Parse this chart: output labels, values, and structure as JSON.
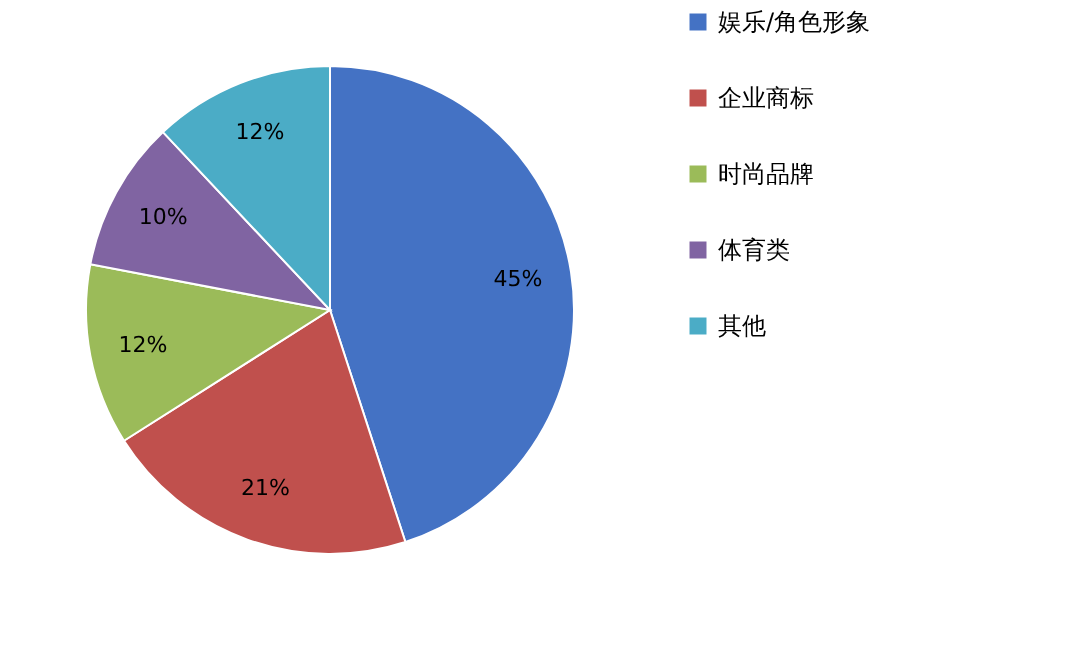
{
  "chart_data": {
    "type": "pie",
    "categories": [
      "娱乐/角色形象",
      "企业商标",
      "时尚品牌",
      "体育类",
      "其他"
    ],
    "values": [
      45,
      21,
      12,
      10,
      12
    ],
    "colors": [
      "#4472c4",
      "#c0504d",
      "#9bbb59",
      "#8064a2",
      "#4bacc6"
    ],
    "value_labels": [
      "45%",
      "21%",
      "12%",
      "10%",
      "12%"
    ],
    "legend": "right"
  }
}
